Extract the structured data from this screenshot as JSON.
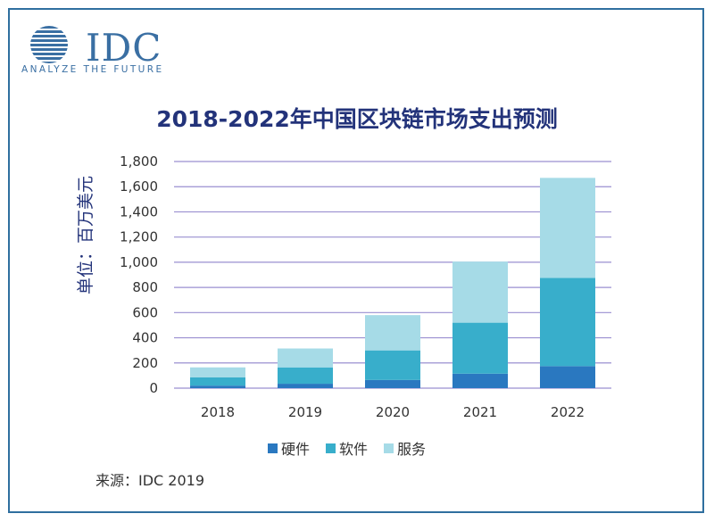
{
  "logo": {
    "brand": "IDC",
    "tagline": "ANALYZE THE FUTURE",
    "icon": "striped-globe-icon"
  },
  "source": "来源：IDC 2019",
  "colors": {
    "hardware": "#2a78c0",
    "software": "#38aecb",
    "services": "#a6dbe7",
    "gridline": "#9a8fd0",
    "title": "#23337a"
  },
  "chart_data": {
    "type": "bar",
    "stacked": true,
    "title": "2018-2022年中国区块链市场支出预测",
    "xlabel": "",
    "ylabel": "单位：百万美元",
    "categories": [
      "2018",
      "2019",
      "2020",
      "2021",
      "2022"
    ],
    "ylim": [
      0,
      1800
    ],
    "yticks": [
      0,
      200,
      400,
      600,
      800,
      1000,
      1200,
      1400,
      1600,
      1800
    ],
    "ytick_labels": [
      "0",
      "200",
      "400",
      "600",
      "800",
      "1,000",
      "1,200",
      "1,400",
      "1,600",
      "1,800"
    ],
    "series": [
      {
        "name": "硬件",
        "values": [
          20,
          35,
          65,
          115,
          175
        ]
      },
      {
        "name": "软件",
        "values": [
          65,
          130,
          235,
          405,
          700
        ]
      },
      {
        "name": "服务",
        "values": [
          80,
          150,
          280,
          485,
          795
        ]
      }
    ],
    "grid": true,
    "legend_position": "bottom"
  }
}
